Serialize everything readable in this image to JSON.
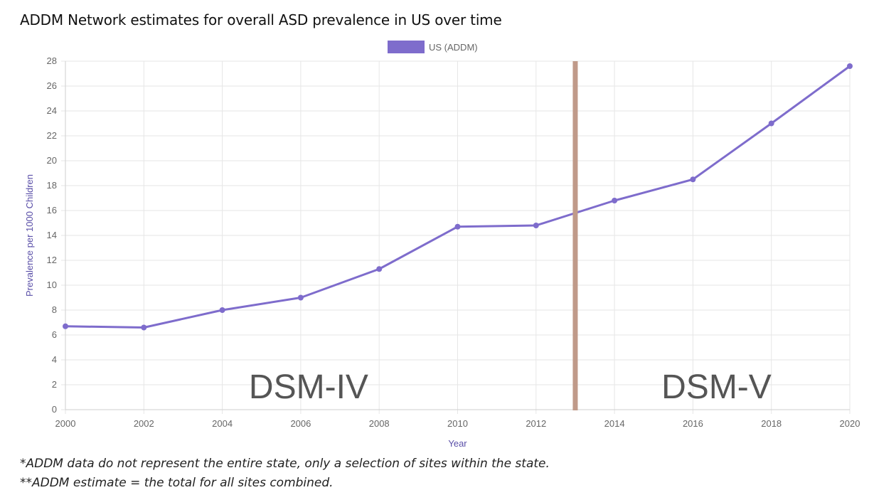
{
  "chart_data": {
    "type": "line",
    "title": "ADDM Network estimates for overall ASD prevalence in US over time",
    "xlabel": "Year",
    "ylabel": "Prevalence per 1000 Children",
    "xlim": [
      2000,
      2020
    ],
    "ylim": [
      0,
      28
    ],
    "x_ticks": [
      2000,
      2002,
      2004,
      2006,
      2008,
      2010,
      2012,
      2014,
      2016,
      2018,
      2020
    ],
    "y_ticks": [
      0,
      2,
      4,
      6,
      8,
      10,
      12,
      14,
      16,
      18,
      20,
      22,
      24,
      26,
      28
    ],
    "grid": true,
    "legend_position": "top-center",
    "series": [
      {
        "name": "US (ADDM)",
        "color": "#7e6ccc",
        "x": [
          2000,
          2002,
          2004,
          2006,
          2008,
          2010,
          2012,
          2014,
          2016,
          2018,
          2020
        ],
        "values": [
          6.7,
          6.6,
          8.0,
          9.0,
          11.3,
          14.7,
          14.8,
          16.8,
          18.5,
          23.0,
          27.6
        ]
      }
    ],
    "vertical_marker": {
      "x": 2013,
      "color": "#c09a89"
    },
    "annotations": [
      {
        "text": "DSM-IV",
        "x": 2006.2,
        "y": 2
      },
      {
        "text": "DSM-V",
        "x": 2016.6,
        "y": 2
      }
    ]
  },
  "footnotes": [
    "*ADDM data do not represent the entire state, only a selection of sites within the state.",
    "**ADDM estimate = the total for all sites combined."
  ],
  "colors": {
    "grid": "#e6e6e6",
    "tick_text": "#666666",
    "axis_label": "#5a4fa8"
  }
}
